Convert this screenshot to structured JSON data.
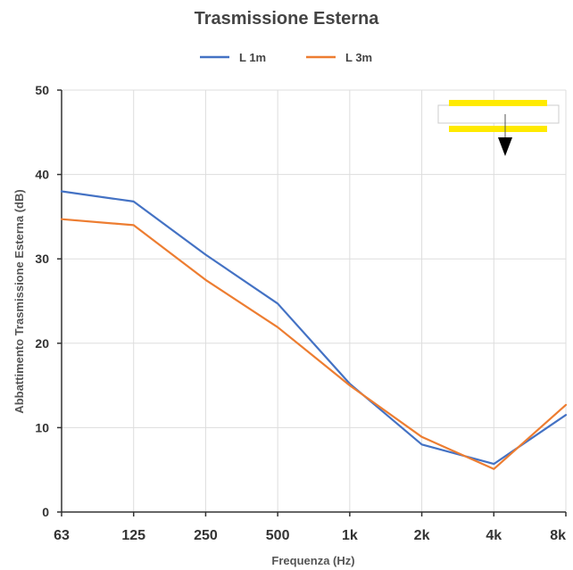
{
  "chart_data": {
    "type": "line",
    "title": "Trasmissione Esterna",
    "xlabel": "Frequenza (Hz)",
    "ylabel": "Abbattimento Trasmissione Esterna (dB)",
    "categories": [
      "63",
      "125",
      "250",
      "500",
      "1k",
      "2k",
      "4k",
      "8k"
    ],
    "ylim": [
      0,
      50
    ],
    "yticks": [
      0,
      10,
      20,
      30,
      40,
      50
    ],
    "grid": true,
    "legend_position": "top-center",
    "series": [
      {
        "name": "L 1m",
        "color": "#4472C4",
        "values": [
          38.0,
          36.8,
          30.5,
          24.7,
          15.2,
          8.0,
          5.7,
          11.5
        ]
      },
      {
        "name": "L 3m",
        "color": "#ED7D31",
        "values": [
          34.7,
          34.0,
          27.5,
          21.9,
          15.0,
          8.9,
          5.1,
          12.7
        ]
      }
    ],
    "annotation": {
      "description": "legend-style marker",
      "colors": {
        "bar": "#FFEA00",
        "arrow": "#000000"
      }
    }
  }
}
